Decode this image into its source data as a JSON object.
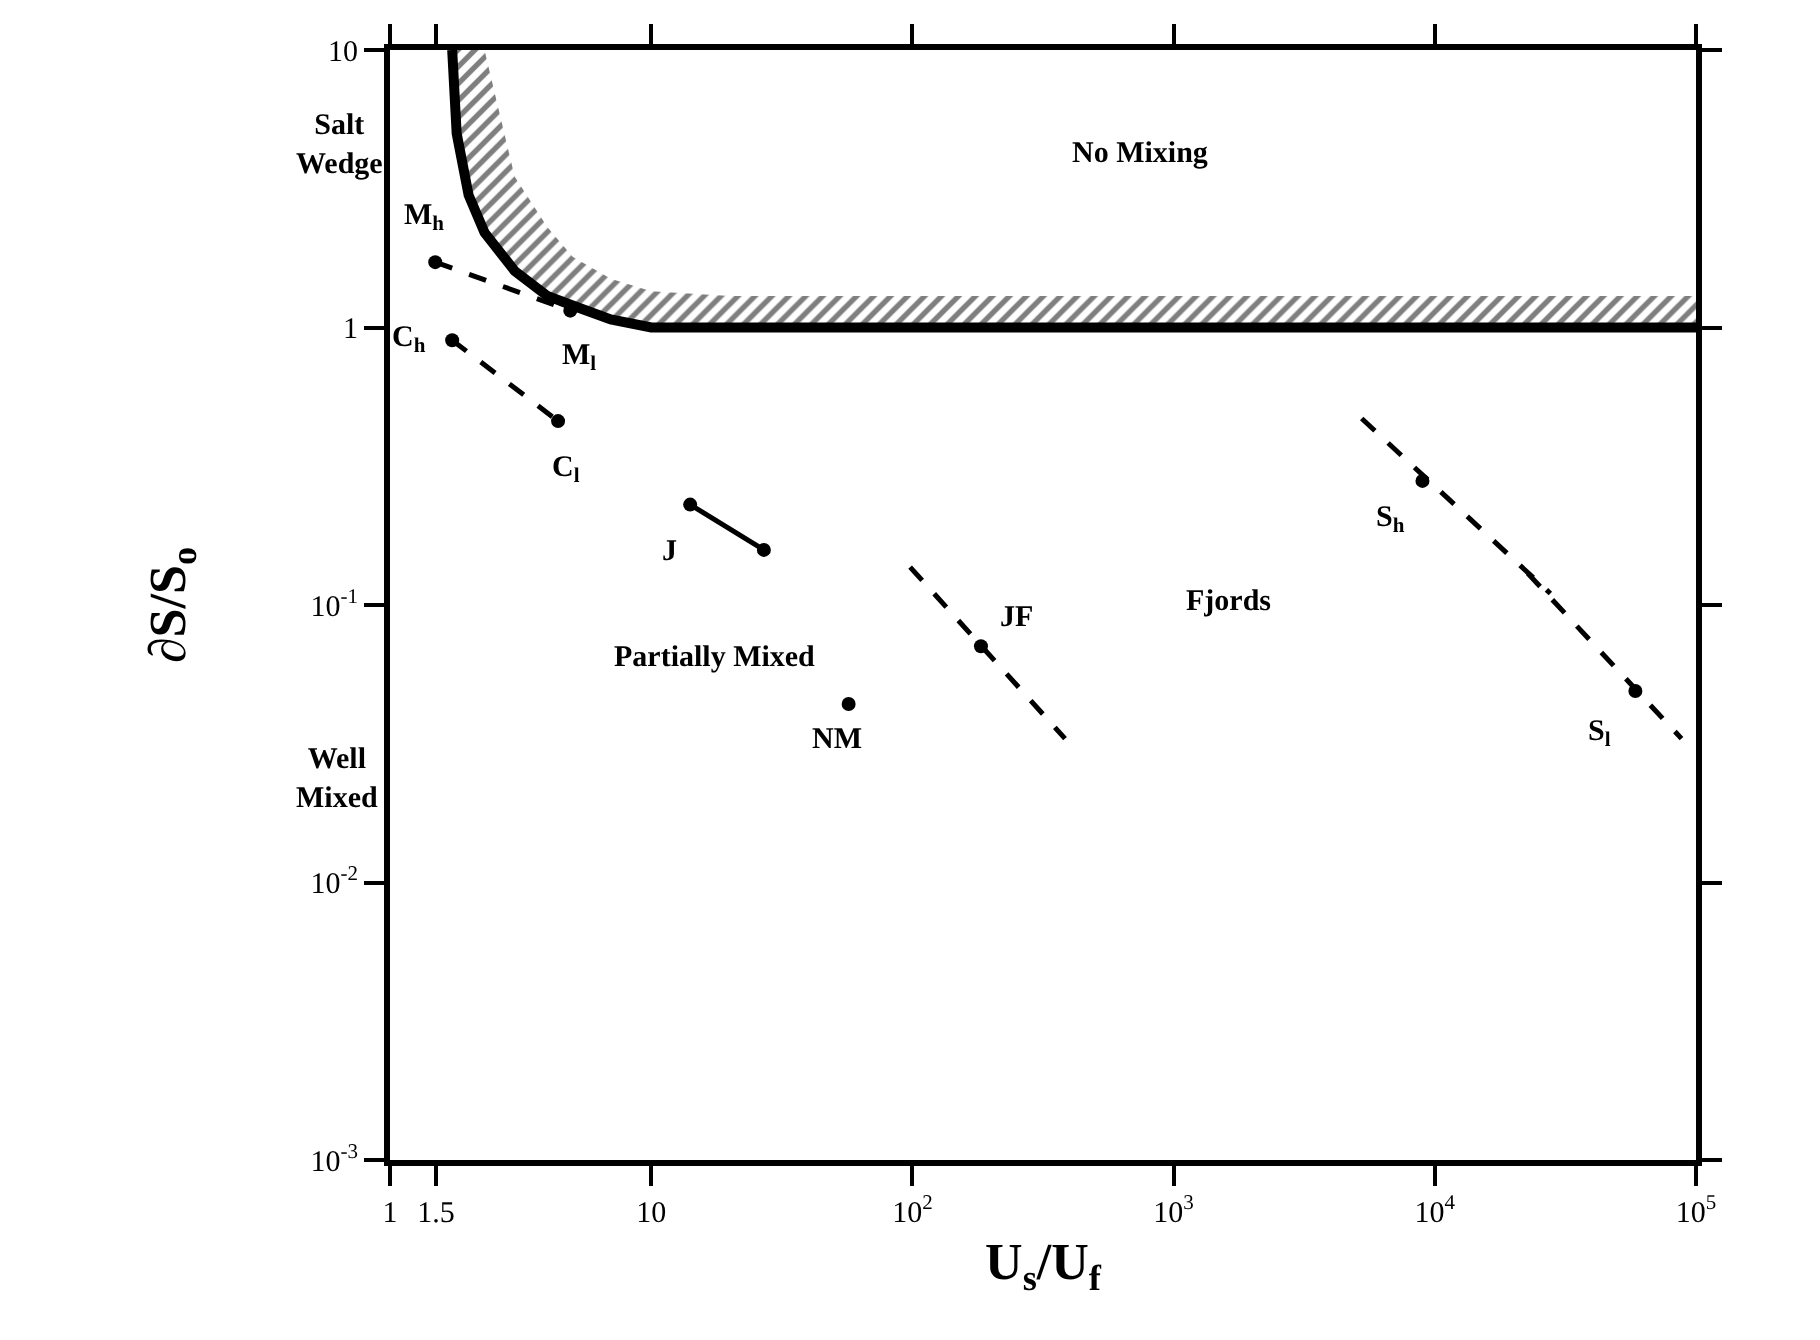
{
  "chart_data": {
    "type": "line",
    "xlabel": "U$_{s}$/U$_{f}$",
    "ylabel": "∂S/S$_{o}$",
    "log": "xy",
    "xlim": [
      1,
      100000
    ],
    "ylim": [
      0.001,
      10
    ],
    "xticks": [
      1,
      1.5,
      10,
      {
        "value": 100,
        "label": "10$^{2}$"
      },
      {
        "value": 1000,
        "label": "10$^{3}$"
      },
      {
        "value": 10000,
        "label": "10$^{4}$"
      },
      {
        "value": 100000,
        "label": "10$^{5}$"
      }
    ],
    "yticks": [
      {
        "value": 0.001,
        "label": "10$^{-3}$"
      },
      {
        "value": 0.01,
        "label": "10$^{-2}$"
      },
      {
        "value": 0.1,
        "label": "10$^{-1}$"
      },
      1,
      10
    ],
    "series": [
      {
        "color": "#000000",
        "marker": "none",
        "line_style": "solid",
        "x": [
          1.73,
          1.8,
          2.0,
          2.3,
          3,
          4,
          5,
          7,
          10,
          20,
          100000
        ],
        "values": [
          10,
          5,
          3,
          2.2,
          1.6,
          1.3,
          1.2,
          1.07,
          1.0,
          1.0,
          1.0
        ],
        "lower": [
          10,
          5,
          3,
          2.2,
          1.6,
          1.3,
          1.2,
          1.07,
          1.0,
          1.0,
          1.0
        ],
        "upper": [
          10,
          10,
          10,
          10,
          3.5,
          2.3,
          1.8,
          1.5,
          1.35,
          1.3,
          1.3
        ]
      },
      {
        "color": "#000000",
        "marker": "circle",
        "line_style": "dashed",
        "x": [
          1.49,
          4.9
        ],
        "values": [
          1.72,
          1.15
        ]
      },
      {
        "color": "#000000",
        "marker": "circle",
        "line_style": "dashed",
        "x": [
          1.73,
          4.4
        ],
        "values": [
          0.9,
          0.46
        ]
      },
      {
        "color": "#000000",
        "marker": "circle",
        "line_style": "solid",
        "x": [
          14.1,
          27
        ],
        "values": [
          0.23,
          0.158
        ]
      },
      {
        "color": "#000000",
        "marker": "none",
        "line_style": "dashed",
        "x": [
          98,
          384
        ],
        "values": [
          0.137,
          0.033
        ]
      },
      {
        "type": "scatter",
        "color": "#000000",
        "marker": "circle",
        "x": [
          183
        ],
        "values": [
          0.071
        ]
      },
      {
        "type": "scatter",
        "color": "#000000",
        "marker": "circle",
        "x": [
          57
        ],
        "values": [
          0.044
        ]
      },
      {
        "color": "#000000",
        "marker": "none",
        "line_style": "dashed",
        "x": [
          5250,
          27700
        ],
        "values": [
          0.47,
          0.11
        ]
      },
      {
        "type": "scatter",
        "color": "#000000",
        "marker": "circle",
        "x": [
          8970
        ],
        "values": [
          0.28
        ]
      },
      {
        "color": "#000000",
        "marker": "none",
        "line_style": "dashed",
        "x": [
          22700,
          88000
        ],
        "values": [
          0.13,
          0.033
        ]
      },
      {
        "type": "scatter",
        "color": "#000000",
        "marker": "circle",
        "x": [
          58600
        ],
        "values": [
          0.049
        ]
      }
    ],
    "annotations": [
      {
        "text": "M$_{h}$",
        "x": 1.49,
        "y": 1.72
      },
      {
        "text": "M$_{l}$",
        "x": 4.9,
        "y": 1.15
      },
      {
        "text": "C$_{h}$",
        "x": 1.73,
        "y": 0.9
      },
      {
        "text": "C$_{l}$",
        "x": 4.4,
        "y": 0.46
      },
      {
        "text": "J",
        "x": 14.1,
        "y": 0.23
      },
      {
        "text": "JF",
        "x": 183,
        "y": 0.071
      },
      {
        "text": "NM",
        "x": 57,
        "y": 0.044
      },
      {
        "text": "S$_{h}$",
        "x": 8970,
        "y": 0.28
      },
      {
        "text": "S$_{l}$",
        "x": 58600,
        "y": 0.049
      },
      "No Mixing",
      "Partially Mixed",
      "Fjords",
      "Well\nMixed",
      "Salt\nWedge"
    ]
  }
}
